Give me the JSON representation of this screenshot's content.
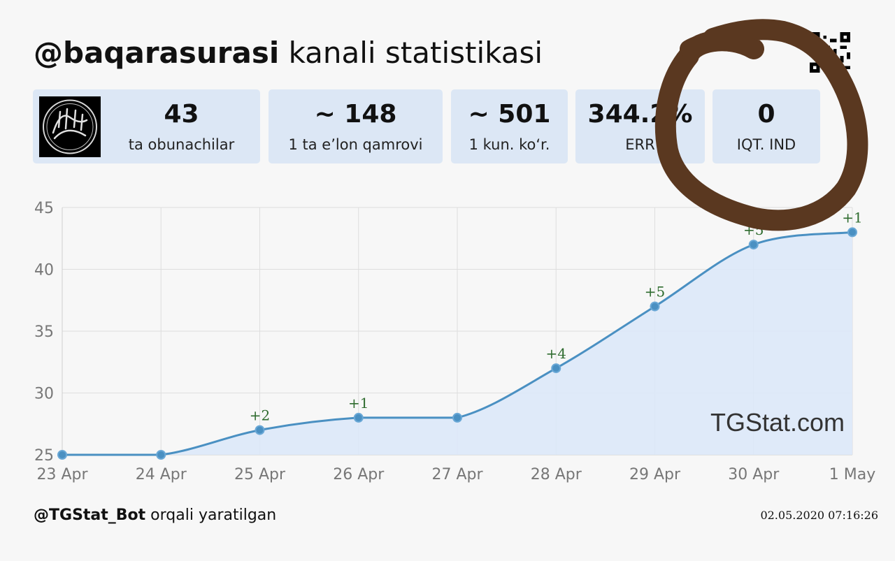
{
  "header": {
    "channel_handle": "@baqarasurasi",
    "title_suffix": " kanali statistikasi"
  },
  "stats": [
    {
      "value": "43",
      "label": "ta obunachilar"
    },
    {
      "value": "~ 148",
      "label": "1 ta e’lon qamrovi"
    },
    {
      "value": "~ 501",
      "label": "1 kun. ko‘r."
    },
    {
      "value": "344.2%",
      "label": "ERR"
    },
    {
      "value": "0",
      "label": "IQT. IND"
    }
  ],
  "watermark": "TGStat.com",
  "footer": {
    "bot": "@TGStat_Bot",
    "suffix": " orqali yaratilgan",
    "timestamp": "02.05.2020 07:16:26"
  },
  "colors": {
    "line": "#4a90c2",
    "fill": "#dce8f8",
    "delta_text": "#2e6b2e",
    "card_bg": "#dce7f5",
    "scribble": "#5a3820"
  },
  "chart_data": {
    "type": "area",
    "x": [
      "23 Apr",
      "24 Apr",
      "25 Apr",
      "26 Apr",
      "27 Apr",
      "28 Apr",
      "29 Apr",
      "30 Apr",
      "1 May"
    ],
    "values": [
      25,
      25,
      27,
      28,
      28,
      32,
      37,
      42,
      43
    ],
    "deltas": [
      "",
      "",
      "+2",
      "+1",
      "",
      "+4",
      "+5",
      "+5",
      "+1"
    ],
    "yticks": [
      25,
      30,
      35,
      40,
      45
    ],
    "ylim": [
      25,
      45
    ],
    "grid": true,
    "legend": "none"
  }
}
